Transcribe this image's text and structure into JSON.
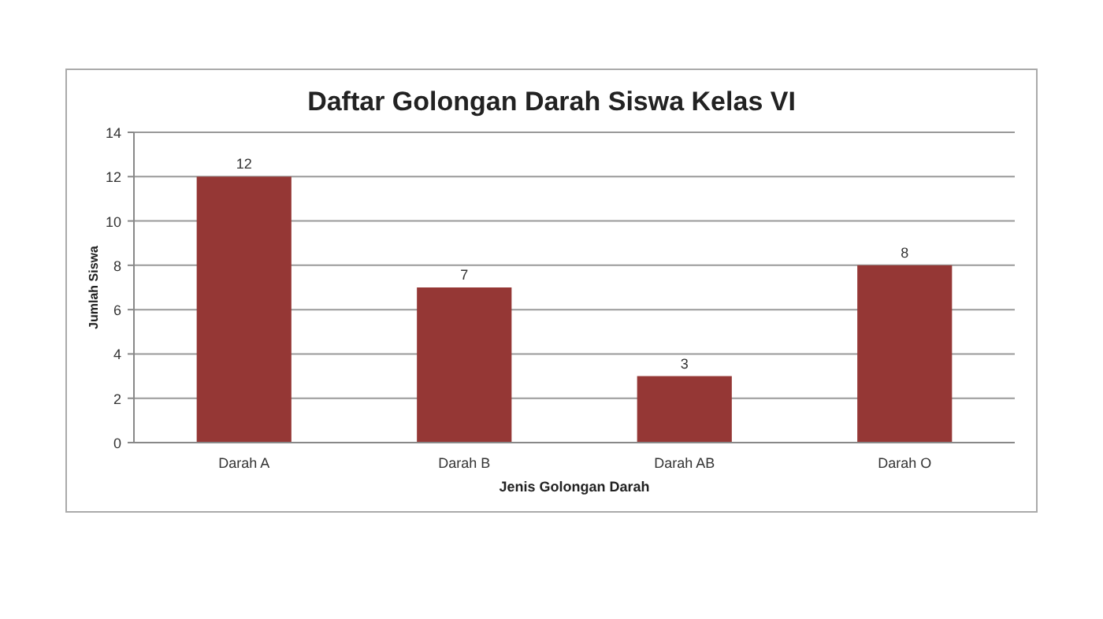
{
  "chart_data": {
    "type": "bar",
    "title": "Daftar Golongan Darah Siswa Kelas VI",
    "xlabel": "Jenis Golongan Darah",
    "ylabel": "Jumlah Siswa",
    "categories": [
      "Darah A",
      "Darah B",
      "Darah AB",
      "Darah O"
    ],
    "values": [
      12,
      7,
      3,
      8
    ],
    "color": "#953735",
    "ylim": [
      0,
      14
    ],
    "yticks": [
      0,
      2,
      4,
      6,
      8,
      10,
      12,
      14
    ],
    "grid": "y",
    "data_labels": true
  }
}
